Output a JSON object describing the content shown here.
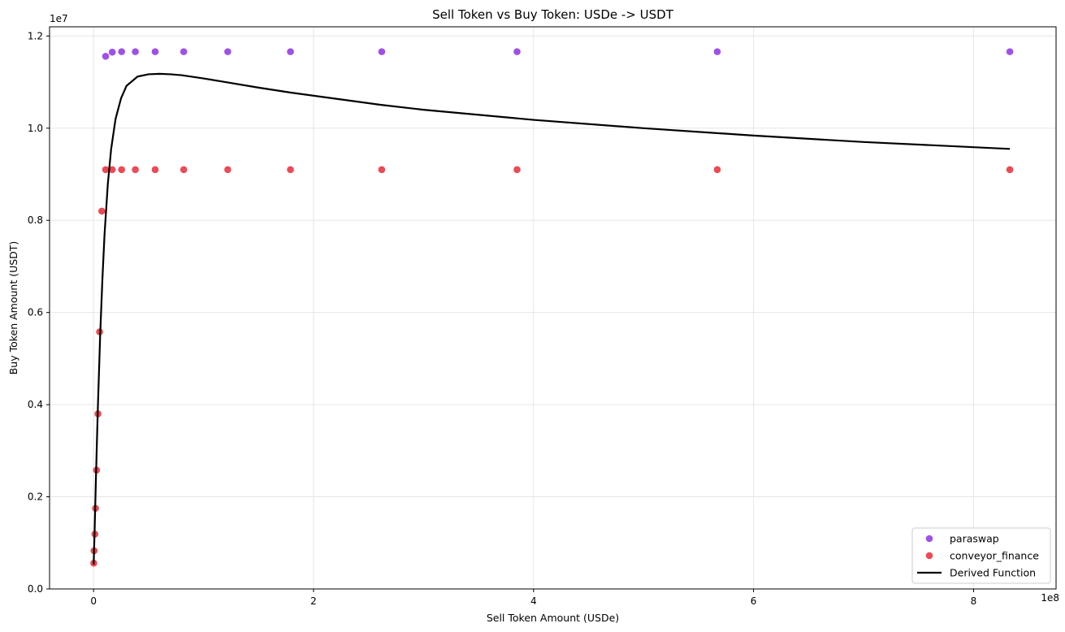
{
  "chart_data": {
    "type": "scatter",
    "title": "Sell Token vs Buy Token: USDe -> USDT",
    "xlabel": "Sell Token Amount (USDe)",
    "ylabel": "Buy Token Amount (USDT)",
    "x_offset_label": "1e8",
    "y_offset_label": "1e7",
    "xlim": [
      -40000000,
      875000000
    ],
    "ylim": [
      0,
      12200000
    ],
    "x_ticks": [
      0,
      200000000,
      400000000,
      600000000,
      800000000
    ],
    "x_tick_labels": [
      "0",
      "2",
      "4",
      "6",
      "8"
    ],
    "y_ticks": [
      0,
      2000000,
      4000000,
      6000000,
      8000000,
      10000000,
      12000000
    ],
    "y_tick_labels": [
      "0.0",
      "0.2",
      "0.4",
      "0.6",
      "0.8",
      "1.0",
      "1.2"
    ],
    "grid": true,
    "legend_position": "bottom-right",
    "series": [
      {
        "name": "paraswap",
        "kind": "scatter",
        "color": "#8a2be2",
        "x": [
          11000000,
          17000000,
          25500000,
          38000000,
          56000000,
          82000000,
          122000000,
          179000000,
          262000000,
          385000000,
          567000000,
          833000000
        ],
        "y": [
          11560000,
          11650000,
          11660000,
          11660000,
          11660000,
          11660000,
          11660000,
          11660000,
          11660000,
          11660000,
          11660000,
          11660000
        ]
      },
      {
        "name": "conveyor_finance",
        "kind": "scatter",
        "color": "#e8222e",
        "x": [
          200000,
          500000,
          1200000,
          1800000,
          2700000,
          4000000,
          5500000,
          7500000,
          11000000,
          17000000,
          25500000,
          38000000,
          56000000,
          82000000,
          122000000,
          179000000,
          262000000,
          385000000,
          567000000,
          833000000
        ],
        "y": [
          560000,
          830000,
          1190000,
          1750000,
          2580000,
          3800000,
          5580000,
          8200000,
          9100000,
          9100000,
          9100000,
          9100000,
          9100000,
          9100000,
          9100000,
          9100000,
          9100000,
          9100000,
          9100000,
          9100000
        ]
      },
      {
        "name": "Derived Function",
        "kind": "line",
        "color": "#000000",
        "x": [
          100000,
          1000000,
          2000000,
          3000000,
          4000000,
          6000000,
          8000000,
          10000000,
          13000000,
          16000000,
          20000000,
          25000000,
          30000000,
          40000000,
          50000000,
          60000000,
          70000000,
          80000000,
          100000000,
          120000000,
          150000000,
          180000000,
          220000000,
          260000000,
          300000000,
          400000000,
          500000000,
          600000000,
          700000000,
          833000000
        ],
        "y": [
          530000,
          1300000,
          2250000,
          3150000,
          4000000,
          5500000,
          6700000,
          7700000,
          8800000,
          9550000,
          10200000,
          10650000,
          10920000,
          11120000,
          11170000,
          11180000,
          11170000,
          11150000,
          11080000,
          11000000,
          10880000,
          10770000,
          10640000,
          10510000,
          10400000,
          10180000,
          10000000,
          9840000,
          9700000,
          9550000
        ]
      }
    ]
  }
}
